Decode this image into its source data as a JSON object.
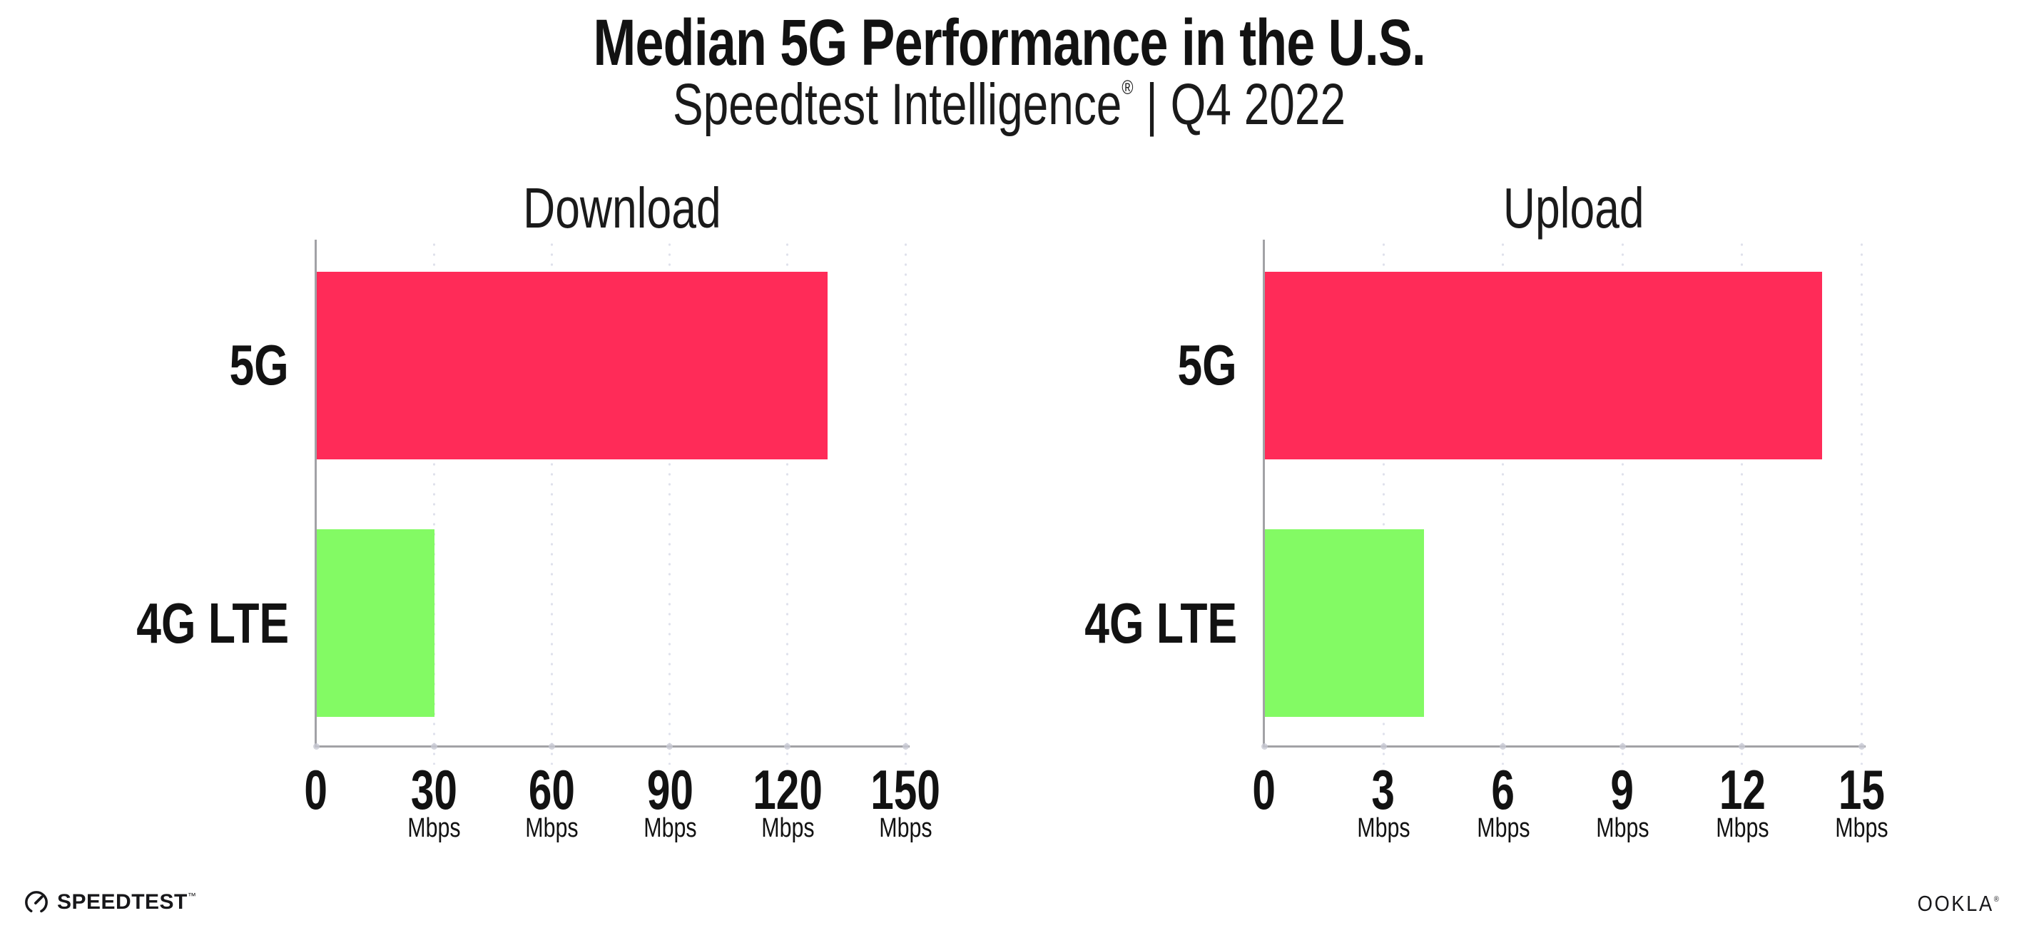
{
  "header": {
    "title": "Median 5G Performance in the U.S.",
    "subtitle_brand": "Speedtest Intelligence",
    "subtitle_mark": "®",
    "subtitle_rest": " | Q4 2022"
  },
  "chart_data": [
    {
      "type": "bar",
      "orientation": "horizontal",
      "title": "Download",
      "categories": [
        "5G",
        "4G LTE"
      ],
      "values": [
        130,
        30
      ],
      "unit": "Mbps",
      "xlabel": "",
      "ylabel": "",
      "xlim": [
        0,
        150
      ],
      "xticks": [
        0,
        30,
        60,
        90,
        120,
        150
      ],
      "bar_colors": [
        "#ff2b58",
        "#83fa64"
      ],
      "grid": "dotted-vertical",
      "legend_position": "none"
    },
    {
      "type": "bar",
      "orientation": "horizontal",
      "title": "Upload",
      "categories": [
        "5G",
        "4G LTE"
      ],
      "values": [
        14,
        4
      ],
      "unit": "Mbps",
      "xlabel": "",
      "ylabel": "",
      "xlim": [
        0,
        15
      ],
      "xticks": [
        0,
        3,
        6,
        9,
        12,
        15
      ],
      "bar_colors": [
        "#ff2b58",
        "#83fa64"
      ],
      "grid": "dotted-vertical",
      "legend_position": "none"
    }
  ],
  "colors": {
    "bar_5g": "#ff2b58",
    "bar_4g_lte": "#83fa64",
    "axis": "#a2a2a6",
    "gridline": "#dfe1ec",
    "axis_dot": "#c9cbd5",
    "text": "#121212"
  },
  "footer": {
    "speedtest_label": "SPEEDTEST",
    "speedtest_mark": "™",
    "ookla_label": "OOKLA",
    "ookla_mark": "®"
  }
}
